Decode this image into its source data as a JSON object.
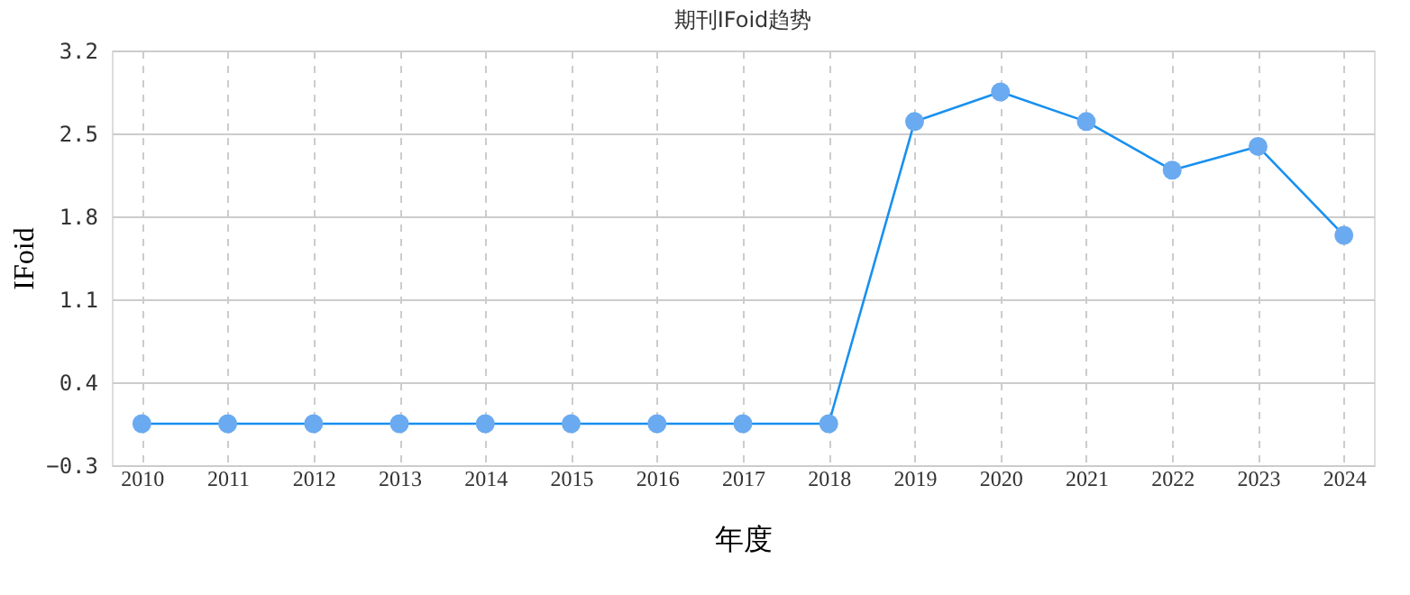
{
  "chart_data": {
    "type": "line",
    "title": "期刊IFoid趋势",
    "xlabel": "年度",
    "ylabel": "IFoid",
    "categories": [
      "2010",
      "2011",
      "2012",
      "2013",
      "2014",
      "2015",
      "2016",
      "2017",
      "2018",
      "2019",
      "2020",
      "2021",
      "2022",
      "2023",
      "2024"
    ],
    "series": [
      {
        "color": "#1890f0",
        "values": [
          0.05,
          0.05,
          0.05,
          0.05,
          0.05,
          0.05,
          0.05,
          0.05,
          0.05,
          2.6,
          2.85,
          2.6,
          2.19,
          2.39,
          1.64
        ]
      }
    ],
    "ylim": [
      -0.3,
      3.2
    ],
    "yticks": [
      -0.3,
      0.4,
      1.1,
      1.8,
      2.5,
      3.2
    ],
    "grid": true,
    "marker": "circle",
    "line_style": "solid"
  }
}
